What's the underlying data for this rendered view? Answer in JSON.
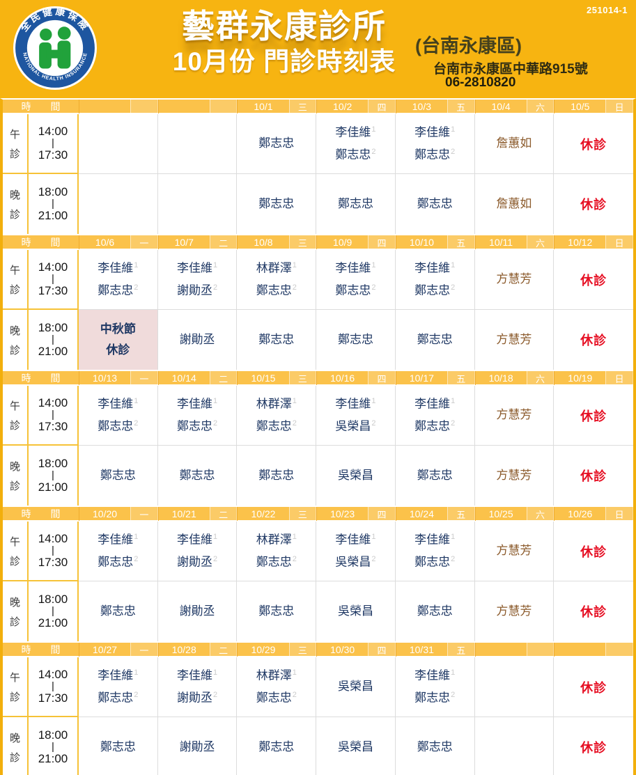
{
  "doc_number": "251014-1",
  "logo": {
    "top_text": "全民健康保險",
    "bottom_text": "NATIONAL HEALTH INSURANCE"
  },
  "banner": {
    "clinic_name": "藝群永康診所",
    "subtitle": "10月份 門診時刻表",
    "district": "(台南永康區)",
    "address": "台南市永康區中華路915號",
    "phone": "06-2810820"
  },
  "table": {
    "time_header": "時 間",
    "closed_label": "休診",
    "sessions": [
      {
        "label": "午診",
        "time_start": "14:00",
        "time_sep": "|",
        "time_end": "17:30"
      },
      {
        "label": "晚診",
        "time_start": "18:00",
        "time_sep": "|",
        "time_end": "21:00"
      }
    ],
    "weeks": [
      {
        "days": [
          {
            "date": "",
            "weekday": "",
            "noon": {},
            "evening": {}
          },
          {
            "date": "",
            "weekday": "",
            "noon": {},
            "evening": {}
          },
          {
            "date": "10/1",
            "weekday": "三",
            "noon": {
              "names": [
                "鄭志忠"
              ]
            },
            "evening": {
              "names": [
                "鄭志忠"
              ]
            }
          },
          {
            "date": "10/2",
            "weekday": "四",
            "noon": {
              "names": [
                "李佳維",
                "鄭志忠"
              ]
            },
            "evening": {
              "names": [
                "鄭志忠"
              ]
            }
          },
          {
            "date": "10/3",
            "weekday": "五",
            "noon": {
              "names": [
                "李佳維",
                "鄭志忠"
              ]
            },
            "evening": {
              "names": [
                "鄭志忠"
              ]
            }
          },
          {
            "date": "10/4",
            "weekday": "六",
            "noon": {
              "names": [
                "詹蕙如"
              ],
              "style": "brown"
            },
            "evening": {
              "names": [
                "詹蕙如"
              ],
              "style": "brown"
            }
          },
          {
            "date": "10/5",
            "weekday": "日",
            "noon": {
              "closed": true
            },
            "evening": {
              "closed": true
            }
          }
        ]
      },
      {
        "days": [
          {
            "date": "10/6",
            "weekday": "一",
            "noon": {
              "names": [
                "李佳維",
                "鄭志忠"
              ]
            },
            "evening": {
              "holiday": [
                "中秋節",
                "休診"
              ]
            }
          },
          {
            "date": "10/7",
            "weekday": "二",
            "noon": {
              "names": [
                "李佳維",
                "謝勛丞"
              ]
            },
            "evening": {
              "names": [
                "謝勛丞"
              ]
            }
          },
          {
            "date": "10/8",
            "weekday": "三",
            "noon": {
              "names": [
                "林群澤",
                "鄭志忠"
              ]
            },
            "evening": {
              "names": [
                "鄭志忠"
              ]
            }
          },
          {
            "date": "10/9",
            "weekday": "四",
            "noon": {
              "names": [
                "李佳維",
                "鄭志忠"
              ]
            },
            "evening": {
              "names": [
                "鄭志忠"
              ]
            }
          },
          {
            "date": "10/10",
            "weekday": "五",
            "noon": {
              "names": [
                "李佳維",
                "鄭志忠"
              ]
            },
            "evening": {
              "names": [
                "鄭志忠"
              ]
            }
          },
          {
            "date": "10/11",
            "weekday": "六",
            "noon": {
              "names": [
                "方慧芳"
              ],
              "style": "brown"
            },
            "evening": {
              "names": [
                "方慧芳"
              ],
              "style": "brown"
            }
          },
          {
            "date": "10/12",
            "weekday": "日",
            "noon": {
              "closed": true
            },
            "evening": {
              "closed": true
            }
          }
        ]
      },
      {
        "days": [
          {
            "date": "10/13",
            "weekday": "一",
            "noon": {
              "names": [
                "李佳維",
                "鄭志忠"
              ]
            },
            "evening": {
              "names": [
                "鄭志忠"
              ]
            }
          },
          {
            "date": "10/14",
            "weekday": "二",
            "noon": {
              "names": [
                "李佳維",
                "鄭志忠"
              ]
            },
            "evening": {
              "names": [
                "鄭志忠"
              ]
            }
          },
          {
            "date": "10/15",
            "weekday": "三",
            "noon": {
              "names": [
                "林群澤",
                "鄭志忠"
              ]
            },
            "evening": {
              "names": [
                "鄭志忠"
              ]
            }
          },
          {
            "date": "10/16",
            "weekday": "四",
            "noon": {
              "names": [
                "李佳維",
                "吳榮昌"
              ]
            },
            "evening": {
              "names": [
                "吳榮昌"
              ]
            }
          },
          {
            "date": "10/17",
            "weekday": "五",
            "noon": {
              "names": [
                "李佳維",
                "鄭志忠"
              ]
            },
            "evening": {
              "names": [
                "鄭志忠"
              ]
            }
          },
          {
            "date": "10/18",
            "weekday": "六",
            "noon": {
              "names": [
                "方慧芳"
              ],
              "style": "brown"
            },
            "evening": {
              "names": [
                "方慧芳"
              ],
              "style": "brown"
            }
          },
          {
            "date": "10/19",
            "weekday": "日",
            "noon": {
              "closed": true
            },
            "evening": {
              "closed": true
            }
          }
        ]
      },
      {
        "days": [
          {
            "date": "10/20",
            "weekday": "一",
            "noon": {
              "names": [
                "李佳維",
                "鄭志忠"
              ]
            },
            "evening": {
              "names": [
                "鄭志忠"
              ]
            }
          },
          {
            "date": "10/21",
            "weekday": "二",
            "noon": {
              "names": [
                "李佳維",
                "謝勛丞"
              ]
            },
            "evening": {
              "names": [
                "謝勛丞"
              ]
            }
          },
          {
            "date": "10/22",
            "weekday": "三",
            "noon": {
              "names": [
                "林群澤",
                "鄭志忠"
              ]
            },
            "evening": {
              "names": [
                "鄭志忠"
              ]
            }
          },
          {
            "date": "10/23",
            "weekday": "四",
            "noon": {
              "names": [
                "李佳維",
                "吳榮昌"
              ]
            },
            "evening": {
              "names": [
                "吳榮昌"
              ]
            }
          },
          {
            "date": "10/24",
            "weekday": "五",
            "noon": {
              "names": [
                "李佳維",
                "鄭志忠"
              ]
            },
            "evening": {
              "names": [
                "鄭志忠"
              ]
            }
          },
          {
            "date": "10/25",
            "weekday": "六",
            "noon": {
              "names": [
                "方慧芳"
              ],
              "style": "brown"
            },
            "evening": {
              "names": [
                "方慧芳"
              ],
              "style": "brown"
            }
          },
          {
            "date": "10/26",
            "weekday": "日",
            "noon": {
              "closed": true
            },
            "evening": {
              "closed": true
            }
          }
        ]
      },
      {
        "days": [
          {
            "date": "10/27",
            "weekday": "一",
            "noon": {
              "names": [
                "李佳維",
                "鄭志忠"
              ]
            },
            "evening": {
              "names": [
                "鄭志忠"
              ]
            }
          },
          {
            "date": "10/28",
            "weekday": "二",
            "noon": {
              "names": [
                "李佳維",
                "謝勛丞"
              ]
            },
            "evening": {
              "names": [
                "謝勛丞"
              ]
            }
          },
          {
            "date": "10/29",
            "weekday": "三",
            "noon": {
              "names": [
                "林群澤",
                "鄭志忠"
              ]
            },
            "evening": {
              "names": [
                "鄭志忠"
              ]
            }
          },
          {
            "date": "10/30",
            "weekday": "四",
            "noon": {
              "names": [
                "吳榮昌"
              ]
            },
            "evening": {
              "names": [
                "吳榮昌"
              ]
            }
          },
          {
            "date": "10/31",
            "weekday": "五",
            "noon": {
              "names": [
                "李佳維",
                "鄭志忠"
              ]
            },
            "evening": {
              "names": [
                "鄭志忠"
              ]
            }
          },
          {
            "date": "",
            "weekday": "",
            "noon": {},
            "evening": {}
          },
          {
            "date": "",
            "weekday": "",
            "noon": {
              "closed": true
            },
            "evening": {
              "closed": true
            }
          }
        ]
      }
    ]
  },
  "colors": {
    "banner_yellow": "#F7B411",
    "header_row_yellow": "#FBC24A",
    "doctor_navy": "#1F3864",
    "doctor_brown": "#8B5A2B",
    "closed_red": "#E60F23",
    "holiday_pink": "#F0DBDB",
    "grid_gray": "#DCDCDC",
    "logo_blue": "#1E56A0",
    "logo_green": "#21A23B"
  }
}
